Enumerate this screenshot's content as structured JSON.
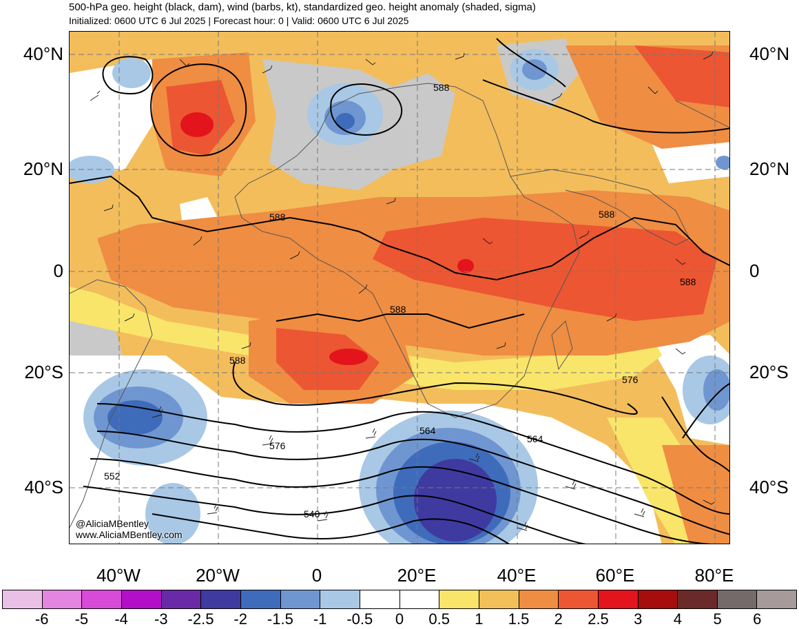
{
  "header": {
    "title": "500-hPa geo. height (black, dam), wind (barbs, kt), standardized geo. height anomaly (shaded, sigma)",
    "subtitle": "Initialized: 0600 UTC 6 Jul 2025 | Forecast hour: 0 | Valid: 0600 UTC 6 Jul 2025"
  },
  "axes": {
    "lat_labels": [
      "40°N",
      "20°N",
      "0",
      "20°S",
      "40°S"
    ],
    "lon_labels": [
      "40°W",
      "20°W",
      "0",
      "20°E",
      "40°E",
      "60°E",
      "80°E"
    ]
  },
  "contours": {
    "labels": [
      "588",
      "588",
      "588",
      "588",
      "588",
      "588",
      "576",
      "576",
      "564",
      "564",
      "552",
      "540"
    ]
  },
  "credit": {
    "handle": "@AliciaMBentley",
    "site": "www.AliciaMBentley.com"
  },
  "colorbar": {
    "labels": [
      "-6",
      "-5",
      "-4",
      "-3",
      "-2.5",
      "-2",
      "-1.5",
      "-1",
      "-0.5",
      "0",
      "0.5",
      "1",
      "1.5",
      "2",
      "2.5",
      "3",
      "4",
      "5",
      "6"
    ],
    "colors": [
      "#ebc0e6",
      "#e585e2",
      "#d84ad8",
      "#b30fc9",
      "#6a2aa8",
      "#3f3aa0",
      "#3f6bbb",
      "#6f96d0",
      "#a8c8e6",
      "#ffffff",
      "#ffffff",
      "#f9e56a",
      "#f2bf58",
      "#ef8d42",
      "#ec5632",
      "#e3141b",
      "#a70d0d",
      "#6b2a2a",
      "#756a6a",
      "#a69a9a"
    ]
  },
  "colors": {
    "ocean_base": "#f3b860",
    "land_gray": "#c8c8c8",
    "strong_positive": "#ec5632",
    "core_positive": "#e3141b",
    "negative_core": "#3f3aa0"
  }
}
